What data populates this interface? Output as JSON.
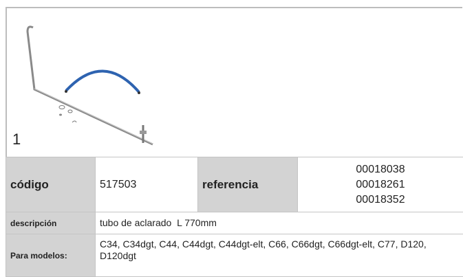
{
  "figure": {
    "label": "1"
  },
  "table": {
    "rows": [
      [
        "código",
        "517503",
        "referencia",
        [
          "00018038",
          "00018261",
          "00018352"
        ]
      ],
      [
        "descripción",
        "tubo de aclarado  L 770mm"
      ],
      [
        "Para modelos:",
        "C34, C34dgt, C44, C44dgt, C44dgt-elt, C66, C66dgt, C66dgt-elt, C77, D120, D120dgt"
      ]
    ]
  }
}
